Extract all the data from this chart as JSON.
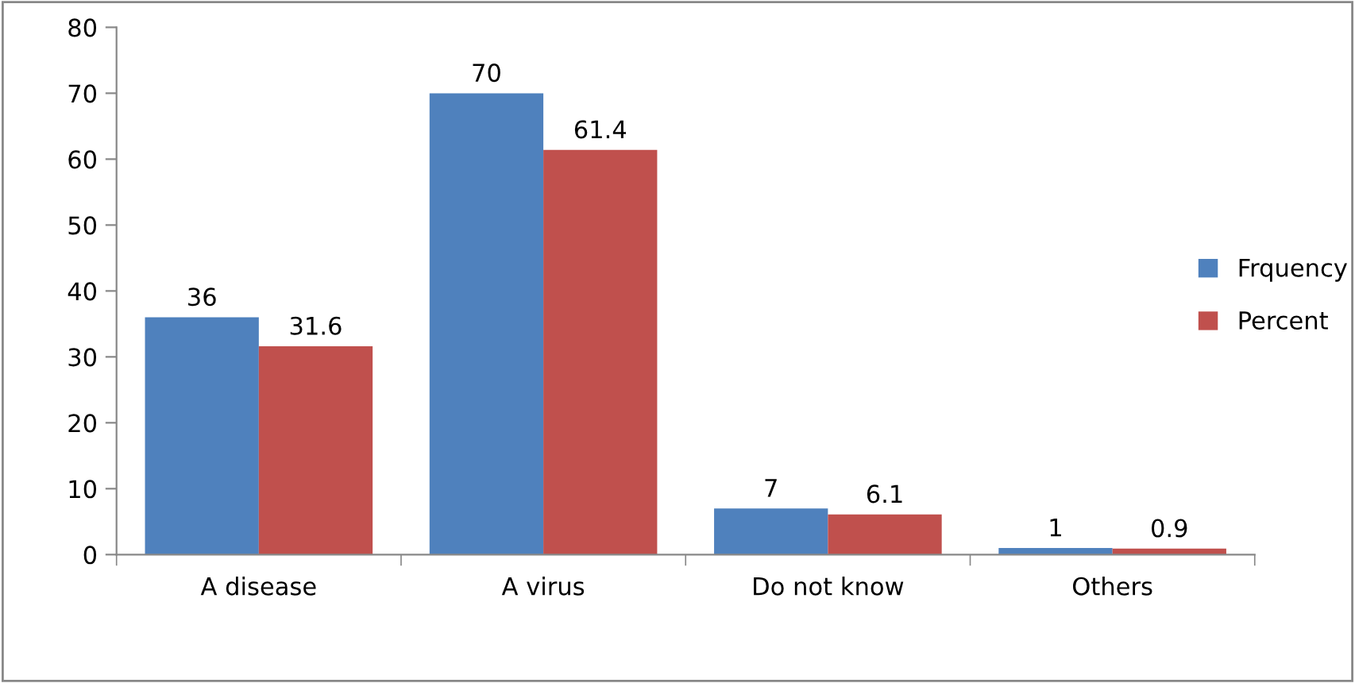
{
  "chart_data": {
    "type": "bar",
    "categories": [
      "A disease",
      "A virus",
      "Do not know",
      "Others"
    ],
    "series": [
      {
        "name": "Frquency",
        "color": "#4f81bd",
        "values": [
          36,
          70,
          7,
          1
        ]
      },
      {
        "name": "Percent",
        "color": "#c0504d",
        "values": [
          31.6,
          61.4,
          6.1,
          0.9
        ]
      }
    ],
    "ylim": [
      0,
      80
    ],
    "yticks": [
      0,
      10,
      20,
      30,
      40,
      50,
      60,
      70,
      80
    ],
    "grid": false,
    "legend": "right",
    "data_labels": true
  }
}
